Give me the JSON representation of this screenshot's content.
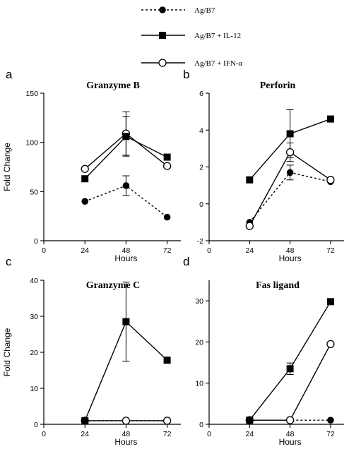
{
  "legend": [
    {
      "label": "Ag/B7",
      "marker": "filled-circle",
      "line": "dashed"
    },
    {
      "label": "Ag/B7 + IL-12",
      "marker": "filled-square",
      "line": "solid"
    },
    {
      "label": "Ag/B7 + IFN-α",
      "marker": "open-circle",
      "line": "solid"
    }
  ],
  "chart_data": [
    {
      "type": "line",
      "panel": "a",
      "title": "Granzyme B",
      "xlabel": "Hours",
      "ylabel": "Fold Change",
      "xlim": [
        0,
        80
      ],
      "xticks": [
        0,
        24,
        48,
        72
      ],
      "ylim": [
        0,
        150
      ],
      "yticks": [
        0,
        50,
        100,
        150
      ],
      "x": [
        24,
        48,
        72
      ],
      "series": [
        {
          "name": "Ag/B7",
          "values": [
            40,
            56,
            24
          ],
          "error": [
            0,
            10,
            0
          ]
        },
        {
          "name": "Ag/B7 + IL-12",
          "values": [
            63,
            106,
            85
          ],
          "error": [
            0,
            20,
            0
          ]
        },
        {
          "name": "Ag/B7 + IFN-α",
          "values": [
            73,
            109,
            76
          ],
          "error": [
            0,
            22,
            0
          ]
        }
      ]
    },
    {
      "type": "line",
      "panel": "b",
      "title": "Perforin",
      "xlabel": "Hours",
      "ylabel": "",
      "xlim": [
        0,
        80
      ],
      "xticks": [
        0,
        24,
        48,
        72
      ],
      "ylim": [
        -2,
        6
      ],
      "yticks": [
        -2,
        0,
        2,
        4,
        6
      ],
      "x": [
        24,
        48,
        72
      ],
      "series": [
        {
          "name": "Ag/B7",
          "values": [
            -1,
            1.7,
            1.2
          ],
          "error": [
            0,
            0.4,
            0
          ]
        },
        {
          "name": "Ag/B7 + IL-12",
          "values": [
            1.3,
            3.8,
            4.6
          ],
          "error": [
            0,
            1.3,
            0
          ]
        },
        {
          "name": "Ag/B7 + IFN-α",
          "values": [
            -1.2,
            2.8,
            1.3
          ],
          "error": [
            0,
            0.5,
            0
          ]
        }
      ]
    },
    {
      "type": "line",
      "panel": "c",
      "title": "Granzyme C",
      "xlabel": "Hours",
      "ylabel": "Fold Change",
      "xlim": [
        0,
        80
      ],
      "xticks": [
        0,
        24,
        48,
        72
      ],
      "ylim": [
        0,
        40
      ],
      "yticks": [
        0,
        10,
        20,
        30,
        40
      ],
      "x": [
        24,
        48,
        72
      ],
      "series": [
        {
          "name": "Ag/B7",
          "values": [
            1,
            1,
            1
          ],
          "error": [
            0,
            0,
            0
          ]
        },
        {
          "name": "Ag/B7 + IL-12",
          "values": [
            1,
            28.5,
            17.8
          ],
          "error": [
            0,
            11,
            0
          ]
        },
        {
          "name": "Ag/B7 + IFN-α",
          "values": [
            1,
            1,
            1
          ],
          "error": [
            0,
            0,
            0
          ]
        }
      ]
    },
    {
      "type": "line",
      "panel": "d",
      "title": "Fas ligand",
      "xlabel": "Hours",
      "ylabel": "",
      "xlim": [
        0,
        80
      ],
      "xticks": [
        0,
        24,
        48,
        72
      ],
      "ylim": [
        0,
        35
      ],
      "yticks": [
        0,
        10,
        20,
        30
      ],
      "x": [
        24,
        48,
        72
      ],
      "series": [
        {
          "name": "Ag/B7",
          "values": [
            1,
            1,
            1
          ],
          "error": [
            0,
            0,
            0
          ]
        },
        {
          "name": "Ag/B7 + IL-12",
          "values": [
            1,
            13.5,
            29.8
          ],
          "error": [
            0,
            1.4,
            0
          ]
        },
        {
          "name": "Ag/B7 + IFN-α",
          "values": [
            1,
            1,
            19.5
          ],
          "error": [
            0,
            0,
            0
          ]
        }
      ]
    }
  ]
}
